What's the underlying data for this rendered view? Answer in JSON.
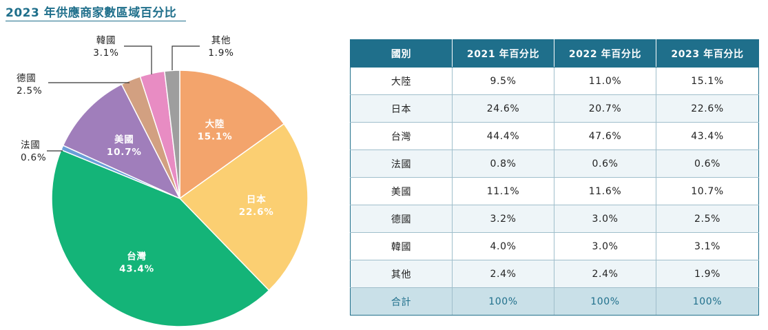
{
  "title": "2023 年供應商家數區域百分比",
  "chart_data": {
    "type": "pie",
    "title": "2023 年供應商家數區域百分比",
    "slices": [
      {
        "name": "大陸",
        "value": 15.1,
        "label": "15.1%",
        "color": "#f3a46c",
        "label_pos": "inside"
      },
      {
        "name": "日本",
        "value": 22.6,
        "label": "22.6%",
        "color": "#fbcf72",
        "label_pos": "inside"
      },
      {
        "name": "台灣",
        "value": 43.4,
        "label": "43.4%",
        "color": "#14b478",
        "label_pos": "inside"
      },
      {
        "name": "法國",
        "value": 0.6,
        "label": "0.6%",
        "color": "#6a9ed8",
        "label_pos": "outside"
      },
      {
        "name": "美國",
        "value": 10.7,
        "label": "10.7%",
        "color": "#a07ebb",
        "label_pos": "inside"
      },
      {
        "name": "德國",
        "value": 2.5,
        "label": "2.5%",
        "color": "#d2a081",
        "label_pos": "outside"
      },
      {
        "name": "韓國",
        "value": 3.1,
        "label": "3.1%",
        "color": "#e88cc3",
        "label_pos": "outside"
      },
      {
        "name": "其他",
        "value": 1.9,
        "label": "1.9%",
        "color": "#9e9e9e",
        "label_pos": "outside"
      }
    ],
    "start": "12 o'clock",
    "direction": "clockwise"
  },
  "table": {
    "headers": [
      "國別",
      "2021 年百分比",
      "2022 年百分比",
      "2023 年百分比"
    ],
    "rows": [
      [
        "大陸",
        "9.5%",
        "11.0%",
        "15.1%"
      ],
      [
        "日本",
        "24.6%",
        "20.7%",
        "22.6%"
      ],
      [
        "台灣",
        "44.4%",
        "47.6%",
        "43.4%"
      ],
      [
        "法國",
        "0.8%",
        "0.6%",
        "0.6%"
      ],
      [
        "美國",
        "11.1%",
        "11.6%",
        "10.7%"
      ],
      [
        "德國",
        "3.2%",
        "3.0%",
        "2.5%"
      ],
      [
        "韓國",
        "4.0%",
        "3.0%",
        "3.1%"
      ],
      [
        "其他",
        "2.4%",
        "2.4%",
        "1.9%"
      ]
    ],
    "total": [
      "合計",
      "100%",
      "100%",
      "100%"
    ]
  },
  "colors": {
    "accent": "#1f6f8b",
    "header_bg": "#1f6f8b",
    "total_bg": "#c9e0e8",
    "stripe_bg": "#eef5f8"
  }
}
